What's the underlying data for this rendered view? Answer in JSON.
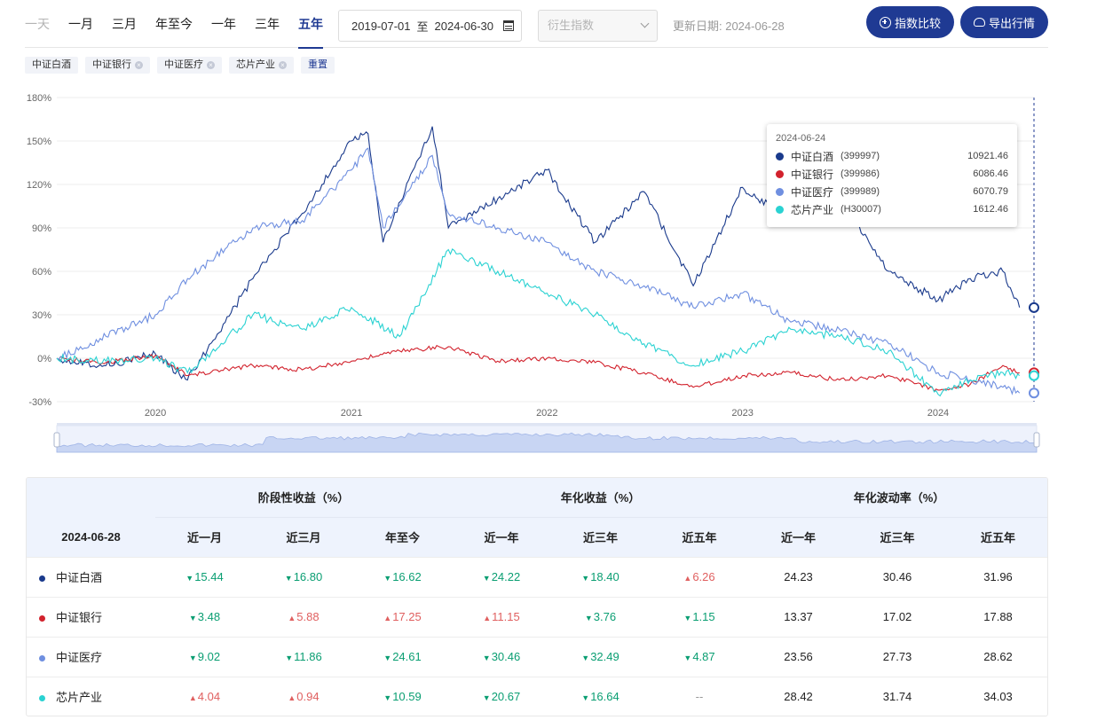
{
  "period_tabs": [
    {
      "label": "一天",
      "state": "disabled"
    },
    {
      "label": "一月",
      "state": "normal"
    },
    {
      "label": "三月",
      "state": "normal"
    },
    {
      "label": "年至今",
      "state": "normal"
    },
    {
      "label": "一年",
      "state": "normal"
    },
    {
      "label": "三年",
      "state": "normal"
    },
    {
      "label": "五年",
      "state": "active"
    }
  ],
  "date_range": {
    "start": "2019-07-01",
    "sep": "至",
    "end": "2024-06-30"
  },
  "derive_select": {
    "placeholder": "衍生指数"
  },
  "update_text": "更新日期: 2024-06-28",
  "buttons": {
    "compare": "指数比较",
    "export": "导出行情"
  },
  "chips": [
    {
      "label": "中证白酒",
      "closable": false
    },
    {
      "label": "中证银行",
      "closable": true
    },
    {
      "label": "中证医疗",
      "closable": true
    },
    {
      "label": "芯片产业",
      "closable": true
    }
  ],
  "reset_label": "重置",
  "colors": {
    "baijiu": "#1a3a8c",
    "bank": "#d2222d",
    "medical": "#6f8fe0",
    "chip": "#2ad2d2",
    "accent": "#1f3a93",
    "down": "#0a9e72",
    "up": "#e06060"
  },
  "chart_data": {
    "type": "line",
    "y_ticks": [
      "180%",
      "150%",
      "120%",
      "90%",
      "60%",
      "30%",
      "0%",
      "-30%"
    ],
    "ylim": [
      -30,
      180
    ],
    "x_ticks": [
      "2020",
      "2021",
      "2022",
      "2023",
      "2024"
    ],
    "x_range": [
      "2019-07-01",
      "2024-06-28"
    ],
    "grid": true,
    "series": [
      {
        "name": "中证白酒",
        "color": "#1a3a8c",
        "x": [
          "2019-07",
          "2019-10",
          "2020-01",
          "2020-03",
          "2020-07",
          "2020-10",
          "2021-01",
          "2021-02",
          "2021-03",
          "2021-06",
          "2021-07",
          "2021-10",
          "2022-01",
          "2022-04",
          "2022-07",
          "2022-10",
          "2023-01",
          "2023-04",
          "2023-07",
          "2023-10",
          "2024-01",
          "2024-03",
          "2024-05",
          "2024-06"
        ],
        "values": [
          0,
          -5,
          3,
          -15,
          55,
          100,
          150,
          155,
          80,
          160,
          90,
          110,
          130,
          80,
          115,
          50,
          118,
          95,
          110,
          60,
          40,
          55,
          60,
          35
        ]
      },
      {
        "name": "中证银行",
        "color": "#d2222d",
        "x": [
          "2019-07",
          "2019-10",
          "2020-01",
          "2020-03",
          "2020-07",
          "2020-10",
          "2021-01",
          "2021-04",
          "2021-07",
          "2021-10",
          "2022-01",
          "2022-04",
          "2022-07",
          "2022-10",
          "2023-01",
          "2023-04",
          "2023-07",
          "2023-10",
          "2024-01",
          "2024-03",
          "2024-05",
          "2024-06"
        ],
        "values": [
          0,
          -3,
          2,
          -12,
          -5,
          -8,
          -2,
          5,
          8,
          -2,
          0,
          -3,
          -10,
          -20,
          -12,
          -10,
          -15,
          -12,
          -22,
          -18,
          -5,
          -10
        ]
      },
      {
        "name": "中证医疗",
        "color": "#6f8fe0",
        "x": [
          "2019-07",
          "2019-10",
          "2020-01",
          "2020-03",
          "2020-07",
          "2020-10",
          "2021-01",
          "2021-02",
          "2021-03",
          "2021-06",
          "2021-07",
          "2021-10",
          "2022-01",
          "2022-04",
          "2022-07",
          "2022-10",
          "2023-01",
          "2023-04",
          "2023-07",
          "2023-10",
          "2024-01",
          "2024-03",
          "2024-05",
          "2024-06"
        ],
        "values": [
          0,
          15,
          30,
          55,
          90,
          95,
          130,
          145,
          90,
          140,
          100,
          90,
          80,
          60,
          50,
          35,
          45,
          25,
          20,
          10,
          -10,
          -15,
          -20,
          -24
        ]
      },
      {
        "name": "芯片产业",
        "color": "#2ad2d2",
        "x": [
          "2019-07",
          "2019-10",
          "2020-01",
          "2020-03",
          "2020-07",
          "2020-10",
          "2021-01",
          "2021-04",
          "2021-07",
          "2021-10",
          "2022-01",
          "2022-04",
          "2022-07",
          "2022-10",
          "2023-01",
          "2023-04",
          "2023-07",
          "2023-10",
          "2024-01",
          "2024-03",
          "2024-05",
          "2024-06"
        ],
        "values": [
          0,
          -2,
          0,
          -10,
          30,
          20,
          35,
          15,
          75,
          60,
          45,
          30,
          10,
          -5,
          5,
          20,
          15,
          5,
          -25,
          -15,
          -10,
          -12
        ]
      }
    ],
    "tooltip": {
      "date": "2024-06-24",
      "rows": [
        {
          "name": "中证白酒",
          "code": "(399997)",
          "value": "10921.46",
          "color": "#1a3a8c"
        },
        {
          "name": "中证银行",
          "code": "(399986)",
          "value": "6086.46",
          "color": "#d2222d"
        },
        {
          "name": "中证医疗",
          "code": "(399989)",
          "value": "6070.79",
          "color": "#6f8fe0"
        },
        {
          "name": "芯片产业",
          "code": "(H30007)",
          "value": "1612.46",
          "color": "#2ad2d2"
        }
      ]
    }
  },
  "table": {
    "date": "2024-06-28",
    "groups": [
      "阶段性收益（%）",
      "年化收益（%）",
      "年化波动率（%）"
    ],
    "subheaders": [
      "近一月",
      "近三月",
      "年至今",
      "近一年",
      "近三年",
      "近五年",
      "近一年",
      "近三年",
      "近五年"
    ],
    "rows": [
      {
        "name": "中证白酒",
        "color": "#1a3a8c",
        "cells": [
          {
            "v": "15.44",
            "d": "down"
          },
          {
            "v": "16.80",
            "d": "down"
          },
          {
            "v": "16.62",
            "d": "down"
          },
          {
            "v": "24.22",
            "d": "down"
          },
          {
            "v": "18.40",
            "d": "down"
          },
          {
            "v": "6.26",
            "d": "up"
          },
          {
            "v": "24.23",
            "d": "none"
          },
          {
            "v": "30.46",
            "d": "none"
          },
          {
            "v": "31.96",
            "d": "none"
          }
        ]
      },
      {
        "name": "中证银行",
        "color": "#d2222d",
        "cells": [
          {
            "v": "3.48",
            "d": "down"
          },
          {
            "v": "5.88",
            "d": "up"
          },
          {
            "v": "17.25",
            "d": "up"
          },
          {
            "v": "11.15",
            "d": "up"
          },
          {
            "v": "3.76",
            "d": "down"
          },
          {
            "v": "1.15",
            "d": "down"
          },
          {
            "v": "13.37",
            "d": "none"
          },
          {
            "v": "17.02",
            "d": "none"
          },
          {
            "v": "17.88",
            "d": "none"
          }
        ]
      },
      {
        "name": "中证医疗",
        "color": "#6f8fe0",
        "cells": [
          {
            "v": "9.02",
            "d": "down"
          },
          {
            "v": "11.86",
            "d": "down"
          },
          {
            "v": "24.61",
            "d": "down"
          },
          {
            "v": "30.46",
            "d": "down"
          },
          {
            "v": "32.49",
            "d": "down"
          },
          {
            "v": "4.87",
            "d": "down"
          },
          {
            "v": "23.56",
            "d": "none"
          },
          {
            "v": "27.73",
            "d": "none"
          },
          {
            "v": "28.62",
            "d": "none"
          }
        ]
      },
      {
        "name": "芯片产业",
        "color": "#2ad2d2",
        "cells": [
          {
            "v": "4.04",
            "d": "up"
          },
          {
            "v": "0.94",
            "d": "up"
          },
          {
            "v": "10.59",
            "d": "down"
          },
          {
            "v": "20.67",
            "d": "down"
          },
          {
            "v": "16.64",
            "d": "down"
          },
          {
            "v": "--",
            "d": "dash"
          },
          {
            "v": "28.42",
            "d": "none"
          },
          {
            "v": "31.74",
            "d": "none"
          },
          {
            "v": "34.03",
            "d": "none"
          }
        ]
      }
    ]
  }
}
